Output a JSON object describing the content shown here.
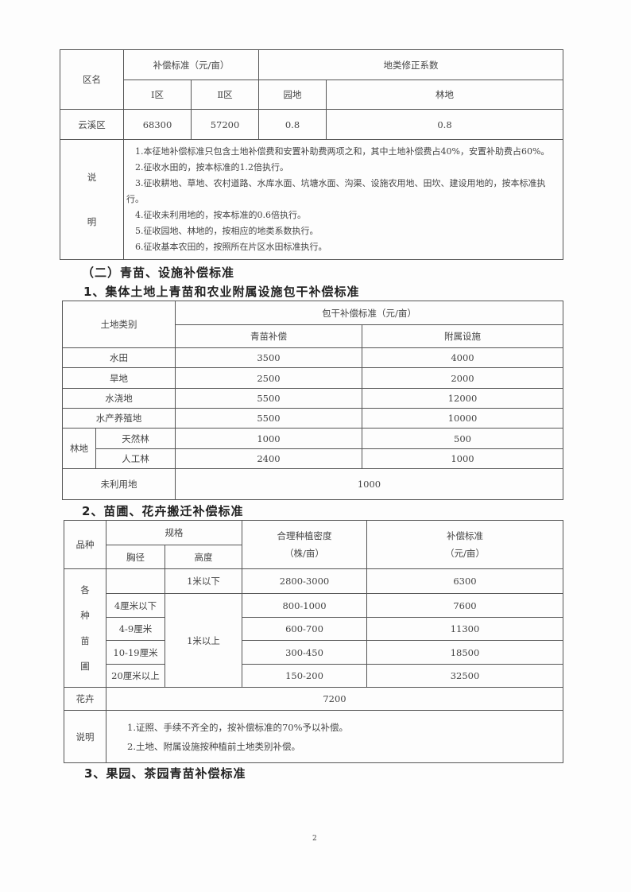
{
  "table1": {
    "h_district": "区名",
    "h_standard": "补偿标准（元/亩）",
    "h_coef": "地类修正系数",
    "h_zone1": "Ⅰ区",
    "h_zone2": "Ⅱ区",
    "h_garden": "园地",
    "h_forest": "林地",
    "row": {
      "district": "云溪区",
      "zone1": "68300",
      "zone2": "57200",
      "garden": "0.8",
      "forest": "0.8"
    },
    "notes_label_1": "说",
    "notes_label_2": "明",
    "notes": [
      "1.本征地补偿标准只包含土地补偿费和安置补助费两项之和，其中土地补偿费占40%，安置补助费占60%。",
      "2.征收水田的，按本标准的1.2倍执行。",
      "3.征收耕地、草地、农村道路、水库水面、坑塘水面、沟渠、设施农用地、田坎、建设用地的，按本标准执行。",
      "4.征收未利用地的，按本标准的0.6倍执行。",
      "5.征收园地、林地的，按相应的地类系数执行。",
      "6.征收基本农田的，按照所在片区水田标准执行。"
    ]
  },
  "section2_title": "（二）青苗、设施补偿标准",
  "heading1": "1、集体土地上青苗和农业附属设施包干补偿标准",
  "table2": {
    "h_land": "土地类别",
    "h_standard": "包干补偿标准（元/亩）",
    "h_crop": "青苗补偿",
    "h_facility": "附属设施",
    "rows": [
      {
        "land": "水田",
        "crop": "3500",
        "facility": "4000"
      },
      {
        "land": "旱地",
        "crop": "2500",
        "facility": "2000"
      },
      {
        "land": "水浇地",
        "crop": "5500",
        "facility": "12000"
      },
      {
        "land": "水产养殖地",
        "crop": "5500",
        "facility": "10000"
      }
    ],
    "forest_label": "林地",
    "forest_rows": [
      {
        "land": "天然林",
        "crop": "1000",
        "facility": "500"
      },
      {
        "land": "人工林",
        "crop": "2400",
        "facility": "1000"
      }
    ],
    "unused": {
      "land": "未利用地",
      "value": "1000"
    }
  },
  "heading2": "2、苗圃、花卉搬迁补偿标准",
  "table3": {
    "h_variety": "品种",
    "h_spec": "规格",
    "h_diameter": "胸径",
    "h_height": "高度",
    "h_density": "合理种植密度",
    "h_density_unit": "（株/亩）",
    "h_standard": "补偿标准",
    "h_standard_unit": "（元/亩）",
    "nursery_label": [
      "各",
      "种",
      "苗",
      "圃"
    ],
    "row_low": {
      "diameter": "",
      "height": "1米以下",
      "density": "2800-3000",
      "standard": "6300"
    },
    "tall_height": "1米以上",
    "rows": [
      {
        "diameter": "4厘米以下",
        "density": "800-1000",
        "standard": "7600"
      },
      {
        "diameter": "4-9厘米",
        "density": "600-700",
        "standard": "11300"
      },
      {
        "diameter": "10-19厘米",
        "density": "300-450",
        "standard": "18500"
      },
      {
        "diameter": "20厘米以上",
        "density": "150-200",
        "standard": "32500"
      }
    ],
    "flowers": {
      "label": "花卉",
      "value": "7200"
    },
    "notes_label": "说明",
    "notes": [
      "1.证照、手续不齐全的，按补偿标准的70%予以补偿。",
      "2.土地、附属设施按种植前土地类别补偿。"
    ]
  },
  "heading3": "3、果园、茶园青苗补偿标准",
  "page_number": "2"
}
